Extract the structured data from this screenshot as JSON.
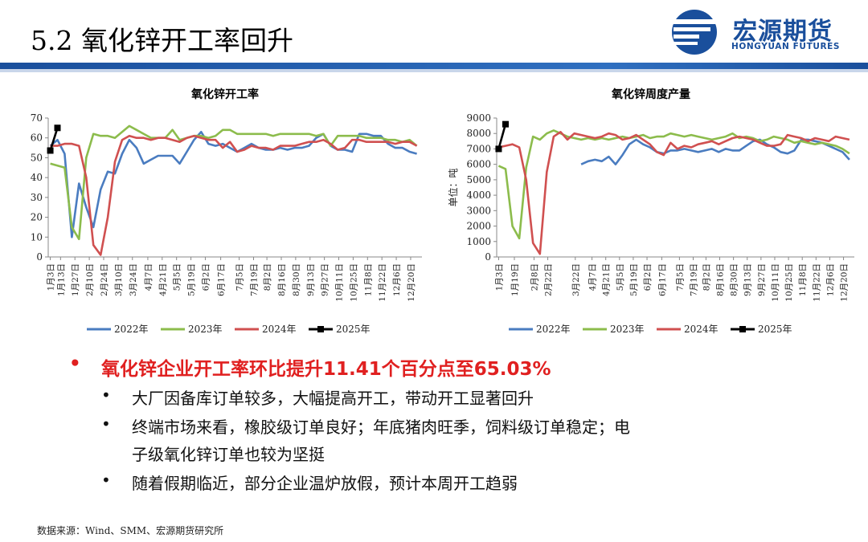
{
  "header": {
    "title": "5.2 氧化锌开工率回升",
    "logo_cn": "宏源期货",
    "logo_en": "HONGYUAN FUTURES",
    "brand_color": "#1a4f9c"
  },
  "chart_data": [
    {
      "type": "line",
      "title": "氧化锌开工率",
      "ylabel": "",
      "ylim": [
        0,
        70
      ],
      "yticks": [
        0,
        10,
        20,
        30,
        40,
        50,
        60,
        70
      ],
      "x_domain": [
        1,
        365
      ],
      "xtick_labels": [
        "1月3日",
        "1月13日",
        "1月27日",
        "2月10日",
        "2月24日",
        "3月10日",
        "3月24日",
        "4月7日",
        "4月21日",
        "5月5日",
        "5月19日",
        "6月2日",
        "6月17日",
        "7月5日",
        "7月19日",
        "8月2日",
        "8月16日",
        "8月30日",
        "9月13日",
        "9月27日",
        "10月11日",
        "10月25日",
        "11月8日",
        "11月22日",
        "12月6日",
        "12月20日"
      ],
      "xtick_days": [
        3,
        13,
        27,
        41,
        55,
        69,
        83,
        98,
        112,
        126,
        140,
        154,
        169,
        187,
        201,
        214,
        228,
        242,
        256,
        270,
        284,
        298,
        312,
        326,
        340,
        354
      ],
      "series": [
        {
          "name": "2022年",
          "color": "#4a7cc0",
          "x": [
            3,
            10,
            17,
            24,
            31,
            38,
            45,
            52,
            59,
            66,
            73,
            80,
            87,
            94,
            101,
            108,
            115,
            122,
            129,
            136,
            143,
            150,
            157,
            164,
            171,
            178,
            185,
            192,
            199,
            206,
            213,
            220,
            227,
            234,
            241,
            248,
            255,
            262,
            269,
            276,
            283,
            290,
            297,
            304,
            311,
            318,
            325,
            332,
            339,
            346,
            353,
            360
          ],
          "y": [
            56,
            59,
            52,
            10,
            37,
            25,
            15,
            34,
            43,
            42,
            52,
            59,
            55,
            47,
            49,
            51,
            51,
            51,
            47,
            53,
            59,
            63,
            57,
            56,
            57,
            55,
            53,
            55,
            57,
            55,
            54,
            54,
            55,
            54,
            55,
            55,
            56,
            60,
            62,
            56,
            54,
            54,
            53,
            62,
            62,
            61,
            61,
            57,
            55,
            55,
            53,
            52
          ]
        },
        {
          "name": "2023年",
          "color": "#8cbc4c",
          "x": [
            3,
            10,
            17,
            24,
            31,
            38,
            45,
            52,
            59,
            66,
            73,
            80,
            87,
            94,
            101,
            108,
            115,
            122,
            129,
            136,
            143,
            150,
            157,
            164,
            171,
            178,
            185,
            192,
            199,
            206,
            213,
            220,
            227,
            234,
            241,
            248,
            255,
            262,
            269,
            276,
            283,
            290,
            297,
            304,
            311,
            318,
            325,
            332,
            339,
            346,
            353,
            360
          ],
          "y": [
            47,
            46,
            45,
            15,
            9,
            50,
            62,
            61,
            61,
            60,
            63,
            66,
            64,
            62,
            60,
            60,
            60,
            64,
            59,
            60,
            61,
            61,
            60,
            61,
            64,
            64,
            62,
            62,
            62,
            62,
            62,
            61,
            62,
            62,
            62,
            62,
            62,
            61,
            62,
            56,
            61,
            61,
            61,
            61,
            60,
            60,
            60,
            59,
            59,
            58,
            59,
            56
          ]
        },
        {
          "name": "2024年",
          "color": "#d05050",
          "x": [
            3,
            10,
            17,
            24,
            31,
            38,
            45,
            52,
            59,
            66,
            73,
            80,
            87,
            94,
            101,
            108,
            115,
            122,
            129,
            136,
            143,
            150,
            157,
            164,
            171,
            178,
            185,
            192,
            199,
            206,
            213,
            220,
            227,
            234,
            241,
            248,
            255,
            262,
            269,
            276,
            283,
            290,
            297,
            304,
            311,
            318,
            325,
            332,
            339,
            346,
            353,
            360
          ],
          "y": [
            56,
            56,
            57,
            57,
            56,
            40,
            6,
            1,
            20,
            48,
            59,
            61,
            60,
            60,
            59,
            60,
            60,
            59,
            58,
            60,
            61,
            60,
            59,
            59,
            55,
            58,
            53,
            54,
            56,
            55,
            55,
            54,
            56,
            56,
            56,
            57,
            58,
            58,
            59,
            57,
            54,
            55,
            59,
            59,
            58,
            58,
            58,
            58,
            57,
            58,
            58,
            56
          ]
        },
        {
          "name": "2025年",
          "color": "#000000",
          "x": [
            3,
            10
          ],
          "y": [
            53.62,
            65.03
          ]
        }
      ]
    },
    {
      "type": "line",
      "title": "氧化锌周度产量",
      "ylabel": "单位：吨",
      "ylim": [
        0,
        9000
      ],
      "yticks": [
        0,
        1000,
        2000,
        3000,
        4000,
        5000,
        6000,
        7000,
        8000,
        9000
      ],
      "x_domain": [
        1,
        365
      ],
      "xtick_labels": [
        "1月3日",
        "1月19日",
        "2月8日",
        "2月22日",
        "3月22日",
        "4月7日",
        "4月21日",
        "5月5日",
        "5月19日",
        "6月2日",
        "6月17日",
        "7月5日",
        "7月19日",
        "8月2日",
        "8月16日",
        "8月30日",
        "9月13日",
        "9月27日",
        "10月11日",
        "10月25日",
        "11月8日",
        "11月22日",
        "12月6日",
        "12月20日"
      ],
      "xtick_days": [
        3,
        19,
        39,
        53,
        81,
        98,
        112,
        126,
        140,
        154,
        169,
        187,
        201,
        214,
        228,
        242,
        256,
        270,
        284,
        298,
        312,
        326,
        340,
        354
      ],
      "series": [
        {
          "name": "2022年",
          "color": "#4a7cc0",
          "x": [
            87,
            94,
            101,
            108,
            115,
            122,
            129,
            136,
            143,
            150,
            157,
            164,
            171,
            178,
            185,
            192,
            199,
            206,
            213,
            220,
            227,
            234,
            241,
            248,
            255,
            262,
            269,
            276,
            283,
            290,
            297,
            304,
            311,
            318,
            325,
            332,
            339,
            346,
            353,
            360
          ],
          "y": [
            6000,
            6200,
            6300,
            6200,
            6500,
            6000,
            6600,
            7300,
            7600,
            7300,
            7100,
            6800,
            6700,
            6900,
            6900,
            7000,
            6900,
            6800,
            6900,
            7000,
            6800,
            7000,
            6900,
            6900,
            7200,
            7500,
            7600,
            7300,
            7100,
            6800,
            6700,
            6900,
            7600,
            7600,
            7500,
            7400,
            7200,
            7000,
            6800,
            6300
          ]
        },
        {
          "name": "2023年",
          "color": "#8cbc4c",
          "x": [
            3,
            10,
            17,
            24,
            31,
            38,
            45,
            52,
            59,
            66,
            73,
            80,
            87,
            94,
            101,
            108,
            115,
            122,
            129,
            136,
            143,
            150,
            157,
            164,
            171,
            178,
            185,
            192,
            199,
            206,
            213,
            220,
            227,
            234,
            241,
            248,
            255,
            262,
            269,
            276,
            283,
            290,
            297,
            304,
            311,
            318,
            325,
            332,
            339,
            346,
            353,
            360
          ],
          "y": [
            5900,
            5700,
            2000,
            1200,
            5800,
            7800,
            7600,
            8000,
            8200,
            8000,
            7800,
            7700,
            7600,
            7700,
            7600,
            7700,
            7600,
            7700,
            7800,
            7700,
            7800,
            7900,
            7700,
            7800,
            7800,
            8000,
            7900,
            7800,
            7900,
            7800,
            7700,
            7600,
            7700,
            7800,
            8000,
            7700,
            7800,
            7700,
            7500,
            7600,
            7800,
            7700,
            7600,
            7400,
            7500,
            7400,
            7300,
            7400,
            7300,
            7200,
            7000,
            6700
          ]
        },
        {
          "name": "2024年",
          "color": "#d05050",
          "x": [
            3,
            10,
            17,
            24,
            31,
            38,
            45,
            52,
            59,
            66,
            73,
            80,
            87,
            94,
            101,
            108,
            115,
            122,
            129,
            136,
            143,
            150,
            157,
            164,
            171,
            178,
            185,
            192,
            199,
            206,
            213,
            220,
            227,
            234,
            241,
            248,
            255,
            262,
            269,
            276,
            283,
            290,
            297,
            304,
            311,
            318,
            325,
            332,
            339,
            346,
            353,
            360
          ],
          "y": [
            7100,
            7200,
            7300,
            7100,
            5000,
            900,
            200,
            5500,
            7800,
            8100,
            7600,
            8000,
            7900,
            7800,
            7700,
            7800,
            8000,
            7900,
            7600,
            7700,
            7900,
            7600,
            7300,
            6800,
            6600,
            7400,
            7000,
            7200,
            7100,
            7300,
            7400,
            7500,
            7300,
            7500,
            7700,
            7800,
            7700,
            7600,
            7400,
            7200,
            7200,
            7300,
            7900,
            7800,
            7700,
            7500,
            7700,
            7600,
            7500,
            7800,
            7700,
            7600
          ]
        },
        {
          "name": "2025年",
          "color": "#000000",
          "x": [
            3,
            10
          ],
          "y": [
            7000,
            8600
          ]
        }
      ]
    }
  ],
  "bullets": {
    "main": "氧化锌企业开工率环比提升11.41个百分点至65.03%",
    "main_color": "#e02020",
    "marker": "•",
    "sub1": "大厂因备库订单较多，大幅提高开工，带动开工显著回升",
    "sub2_line1": "终端市场来看，橡胶级订单良好；年底猪肉旺季，饲料级订单稳定；电",
    "sub2_line2": "子级氧化锌订单也较为坚挺",
    "sub3": "随着假期临近，部分企业温炉放假，预计本周开工趋弱"
  },
  "source": "数据来源：Wind、SMM、宏源期货研究所"
}
